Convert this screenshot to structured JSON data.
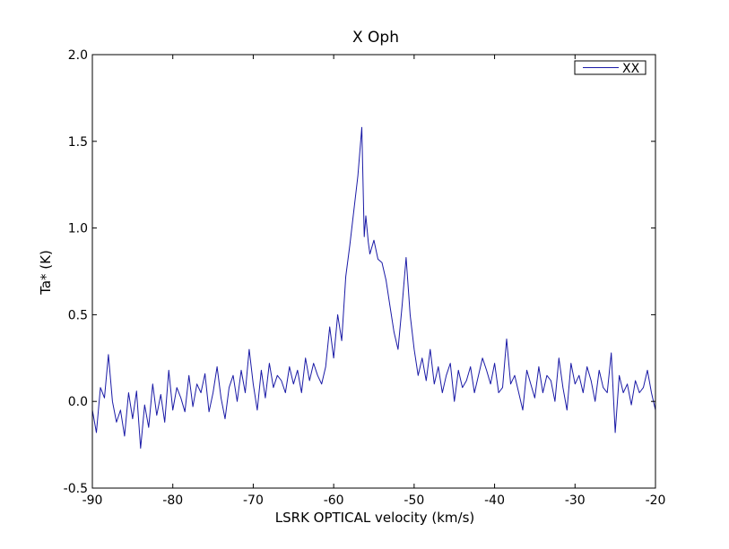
{
  "chart_data": {
    "type": "line",
    "title": "X Oph",
    "xlabel": "LSRK OPTICAL velocity (km/s)",
    "ylabel": "Ta* (K)",
    "xlim": [
      -90,
      -20
    ],
    "ylim": [
      -0.5,
      2.0
    ],
    "xticks": [
      -90,
      -80,
      -70,
      -60,
      -50,
      -40,
      -30,
      -20
    ],
    "yticks": [
      -0.5,
      0.0,
      0.5,
      1.0,
      1.5,
      2.0
    ],
    "xtick_labels": [
      "-90",
      "-80",
      "-70",
      "-60",
      "-50",
      "-40",
      "-30",
      "-20"
    ],
    "ytick_labels": [
      "-0.5",
      "0.0",
      "0.5",
      "1.0",
      "1.5",
      "2.0"
    ],
    "grid": false,
    "legend_position": "top-right",
    "series": [
      {
        "name": "XX",
        "color": "#1a1aa6",
        "x": [
          -90.0,
          -89.5,
          -89.0,
          -88.5,
          -88.0,
          -87.5,
          -87.0,
          -86.5,
          -86.0,
          -85.5,
          -85.0,
          -84.5,
          -84.0,
          -83.5,
          -83.0,
          -82.5,
          -82.0,
          -81.5,
          -81.0,
          -80.5,
          -80.0,
          -79.5,
          -79.0,
          -78.5,
          -78.0,
          -77.5,
          -77.0,
          -76.5,
          -76.0,
          -75.5,
          -75.0,
          -74.5,
          -74.0,
          -73.5,
          -73.0,
          -72.5,
          -72.0,
          -71.5,
          -71.0,
          -70.5,
          -70.0,
          -69.5,
          -69.0,
          -68.5,
          -68.0,
          -67.5,
          -67.0,
          -66.5,
          -66.0,
          -65.5,
          -65.0,
          -64.5,
          -64.0,
          -63.5,
          -63.0,
          -62.5,
          -62.0,
          -61.5,
          -61.0,
          -60.5,
          -60.0,
          -59.5,
          -59.0,
          -58.5,
          -58.0,
          -57.5,
          -57.0,
          -56.5,
          -56.2,
          -56.0,
          -55.7,
          -55.5,
          -55.0,
          -54.5,
          -54.0,
          -53.5,
          -53.0,
          -52.5,
          -52.0,
          -51.5,
          -51.0,
          -50.5,
          -50.0,
          -49.5,
          -49.0,
          -48.5,
          -48.0,
          -47.5,
          -47.0,
          -46.5,
          -46.0,
          -45.5,
          -45.0,
          -44.5,
          -44.0,
          -43.5,
          -43.0,
          -42.5,
          -42.0,
          -41.5,
          -41.0,
          -40.5,
          -40.0,
          -39.5,
          -39.0,
          -38.5,
          -38.0,
          -37.5,
          -37.0,
          -36.5,
          -36.0,
          -35.5,
          -35.0,
          -34.5,
          -34.0,
          -33.5,
          -33.0,
          -32.5,
          -32.0,
          -31.5,
          -31.0,
          -30.5,
          -30.0,
          -29.5,
          -29.0,
          -28.5,
          -28.0,
          -27.5,
          -27.0,
          -26.5,
          -26.0,
          -25.5,
          -25.0,
          -24.5,
          -24.0,
          -23.5,
          -23.0,
          -22.5,
          -22.0,
          -21.5,
          -21.0,
          -20.5,
          -20.0
        ],
        "y": [
          -0.05,
          -0.18,
          0.08,
          0.02,
          0.27,
          0.0,
          -0.12,
          -0.05,
          -0.2,
          0.05,
          -0.1,
          0.06,
          -0.27,
          -0.02,
          -0.15,
          0.1,
          -0.08,
          0.04,
          -0.12,
          0.18,
          -0.05,
          0.08,
          0.02,
          -0.06,
          0.15,
          -0.03,
          0.1,
          0.05,
          0.16,
          -0.06,
          0.05,
          0.2,
          0.02,
          -0.1,
          0.08,
          0.15,
          0.0,
          0.18,
          0.05,
          0.3,
          0.1,
          -0.05,
          0.18,
          0.02,
          0.22,
          0.08,
          0.15,
          0.12,
          0.05,
          0.2,
          0.1,
          0.18,
          0.05,
          0.25,
          0.12,
          0.22,
          0.15,
          0.1,
          0.2,
          0.43,
          0.25,
          0.5,
          0.35,
          0.72,
          0.9,
          1.1,
          1.3,
          1.58,
          0.95,
          1.07,
          0.92,
          0.85,
          0.93,
          0.82,
          0.8,
          0.7,
          0.55,
          0.4,
          0.3,
          0.55,
          0.83,
          0.5,
          0.3,
          0.15,
          0.25,
          0.12,
          0.3,
          0.1,
          0.2,
          0.05,
          0.15,
          0.22,
          0.0,
          0.18,
          0.08,
          0.12,
          0.2,
          0.05,
          0.15,
          0.25,
          0.18,
          0.1,
          0.22,
          0.05,
          0.08,
          0.36,
          0.1,
          0.15,
          0.05,
          -0.05,
          0.18,
          0.1,
          0.02,
          0.2,
          0.05,
          0.15,
          0.12,
          0.0,
          0.25,
          0.08,
          -0.05,
          0.22,
          0.1,
          0.15,
          0.05,
          0.2,
          0.12,
          0.0,
          0.18,
          0.08,
          0.05,
          0.28,
          -0.18,
          0.15,
          0.05,
          0.1,
          -0.02,
          0.12,
          0.05,
          0.08,
          0.18,
          0.05,
          -0.05
        ]
      }
    ]
  }
}
